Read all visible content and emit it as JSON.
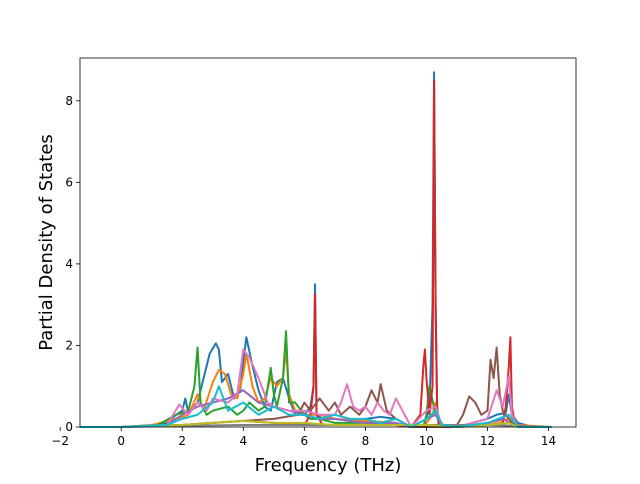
{
  "chart_data": {
    "type": "line",
    "title": "",
    "xlabel": "Frequency (THz)",
    "ylabel": "Partial Density of States",
    "xlim": [
      -1.35,
      14.9
    ],
    "ylim": [
      0,
      9.05
    ],
    "xticks": [
      -2,
      0,
      2,
      4,
      6,
      8,
      10,
      12,
      14
    ],
    "yticks": [
      0,
      2,
      4,
      6,
      8
    ],
    "grid": false,
    "legend": "none",
    "colors": [
      "#1f77b4",
      "#ff7f0e",
      "#2ca02c",
      "#d62728",
      "#9467bd",
      "#8c564b",
      "#e377c2",
      "#7f7f7f",
      "#bcbd22",
      "#17becf"
    ],
    "series": [
      {
        "x": [
          -1.35,
          0.0,
          0.8,
          1.5,
          1.8,
          2.0,
          2.1,
          2.2,
          2.5,
          2.7,
          2.9,
          3.1,
          3.2,
          3.3,
          3.5,
          3.7,
          3.9,
          4.0,
          4.1,
          4.3,
          4.5,
          4.7,
          4.9,
          5.1,
          5.3,
          5.5,
          5.7,
          6.0,
          6.2,
          6.3,
          6.35,
          6.4,
          6.6,
          7.0,
          7.5,
          8.0,
          8.5,
          9.0,
          9.5,
          9.9,
          10.1,
          10.2,
          10.25,
          10.3,
          10.35,
          10.4,
          10.6,
          11.0,
          11.5,
          12.0,
          12.3,
          12.6,
          12.7,
          12.8,
          13.0,
          13.5,
          14.1
        ],
        "y": [
          0,
          0,
          0.02,
          0.1,
          0.3,
          0.4,
          0.7,
          0.35,
          0.6,
          1.2,
          1.8,
          2.05,
          1.9,
          1.1,
          1.3,
          0.7,
          0.9,
          1.6,
          2.2,
          1.5,
          0.9,
          0.5,
          0.4,
          1.1,
          1.2,
          0.7,
          0.3,
          0.3,
          0.5,
          1.0,
          3.5,
          0.3,
          0.2,
          0.2,
          0.15,
          0.2,
          0.25,
          0.2,
          0,
          0,
          0.5,
          3.0,
          8.7,
          3.0,
          0.5,
          0.05,
          0,
          0,
          0.1,
          0.2,
          0.3,
          0.35,
          0.8,
          0.3,
          0.1,
          0,
          0
        ]
      },
      {
        "x": [
          -1.35,
          0.0,
          1.0,
          1.8,
          2.2,
          2.5,
          2.7,
          3.0,
          3.2,
          3.4,
          3.6,
          3.8,
          4.0,
          4.1,
          4.3,
          4.5,
          4.7,
          4.9,
          5.1,
          5.3,
          5.4,
          5.5,
          5.7,
          6.0,
          6.5,
          7.0,
          8.0,
          9.0,
          9.5,
          9.9,
          10.2,
          10.3,
          10.4,
          10.6,
          11.0,
          12.0,
          12.7,
          13.0,
          14.1
        ],
        "y": [
          0,
          0,
          0.05,
          0.2,
          0.3,
          0.8,
          0.4,
          1.1,
          1.4,
          1.3,
          0.8,
          0.7,
          1.3,
          1.8,
          1.0,
          0.6,
          0.7,
          1.2,
          1.0,
          1.2,
          1.9,
          0.8,
          0.4,
          0.3,
          0.3,
          0.2,
          0.15,
          0.1,
          0,
          0,
          0.3,
          0.6,
          0.2,
          0,
          0,
          0.1,
          0.2,
          0.05,
          0
        ]
      },
      {
        "x": [
          -1.35,
          0.0,
          1.2,
          1.8,
          2.2,
          2.4,
          2.5,
          2.6,
          2.8,
          3.0,
          3.5,
          3.8,
          4.0,
          4.2,
          4.5,
          4.7,
          4.9,
          5.0,
          5.1,
          5.3,
          5.4,
          5.5,
          5.7,
          6.0,
          6.2,
          6.5,
          7.0,
          8.0,
          9.0,
          9.5,
          9.9,
          10.0,
          10.1,
          10.3,
          10.5,
          11.0,
          12.0,
          12.7,
          13.0,
          14.1
        ],
        "y": [
          0,
          0,
          0.05,
          0.3,
          0.4,
          1.0,
          1.95,
          0.6,
          0.3,
          0.4,
          0.5,
          0.3,
          0.4,
          0.6,
          0.4,
          0.5,
          1.45,
          0.8,
          0.5,
          1.2,
          2.35,
          0.6,
          0.6,
          0.3,
          0.2,
          0.2,
          0.1,
          0.1,
          0.05,
          0,
          0,
          0.3,
          1.0,
          0.3,
          0.05,
          0,
          0.05,
          0.1,
          0,
          0
        ]
      },
      {
        "x": [
          -1.35,
          0.0,
          2.0,
          3.0,
          4.0,
          5.0,
          6.0,
          6.2,
          6.3,
          6.35,
          6.4,
          6.6,
          7.0,
          8.0,
          9.0,
          9.5,
          9.8,
          9.9,
          9.95,
          10.0,
          10.1,
          10.2,
          10.25,
          10.3,
          10.35,
          10.4,
          10.6,
          11.0,
          12.0,
          12.5,
          12.6,
          12.7,
          12.75,
          12.8,
          12.9,
          13.0,
          14.1
        ],
        "y": [
          0,
          0,
          0.05,
          0.1,
          0.15,
          0.1,
          0.05,
          0.3,
          1.0,
          3.25,
          0.3,
          0.05,
          0.05,
          0.05,
          0.05,
          0,
          0.3,
          1.5,
          1.9,
          1.2,
          0.3,
          1.0,
          8.5,
          3.0,
          0.5,
          0.05,
          0,
          0,
          0.05,
          0.1,
          0.5,
          1.5,
          2.2,
          0.5,
          0.05,
          0,
          0
        ]
      },
      {
        "x": [
          -1.35,
          0.0,
          1.5,
          2.0,
          2.5,
          3.0,
          3.5,
          4.0,
          4.5,
          5.0,
          5.5,
          6.0,
          6.5,
          7.0,
          7.5,
          8.0,
          9.0,
          9.5,
          10.0,
          10.3,
          10.5,
          11.0,
          12.0,
          12.5,
          13.0,
          14.1
        ],
        "y": [
          0,
          0,
          0.05,
          0.3,
          0.5,
          0.6,
          0.7,
          0.9,
          0.6,
          0.5,
          0.4,
          0.3,
          0.2,
          0.2,
          0.15,
          0.1,
          0.1,
          0,
          0.2,
          0.3,
          0.05,
          0,
          0.1,
          0.2,
          0,
          0
        ]
      },
      {
        "x": [
          -1.35,
          0.0,
          2.0,
          3.0,
          4.0,
          5.0,
          5.8,
          6.0,
          6.2,
          6.5,
          6.8,
          7.0,
          7.2,
          7.5,
          7.8,
          8.0,
          8.2,
          8.4,
          8.5,
          8.7,
          9.0,
          9.5,
          10.0,
          10.5,
          11.0,
          11.2,
          11.4,
          11.6,
          11.8,
          12.0,
          12.1,
          12.2,
          12.3,
          12.4,
          12.5,
          12.8,
          13.0,
          14.1
        ],
        "y": [
          0,
          0,
          0.05,
          0.1,
          0.15,
          0.2,
          0.3,
          0.6,
          0.4,
          0.7,
          0.4,
          0.6,
          0.3,
          0.5,
          0.3,
          0.5,
          0.9,
          0.6,
          1.05,
          0.4,
          0.2,
          0,
          0,
          0,
          0.05,
          0.3,
          0.75,
          0.6,
          0.3,
          0.4,
          1.65,
          1.2,
          1.95,
          0.8,
          0.4,
          0.1,
          0,
          0
        ]
      },
      {
        "x": [
          -1.35,
          0.0,
          1.5,
          1.9,
          2.2,
          2.5,
          2.8,
          3.0,
          3.5,
          3.8,
          4.0,
          4.2,
          4.5,
          4.8,
          5.0,
          5.5,
          6.0,
          6.5,
          7.0,
          7.2,
          7.4,
          7.6,
          7.8,
          8.0,
          8.2,
          8.4,
          8.6,
          8.8,
          9.0,
          9.5,
          10.0,
          10.3,
          10.5,
          11.0,
          11.5,
          12.0,
          12.3,
          12.5,
          12.7,
          12.8,
          13.0,
          14.1
        ],
        "y": [
          0,
          0,
          0.05,
          0.55,
          0.3,
          0.6,
          0.4,
          0.7,
          0.6,
          0.8,
          1.9,
          1.7,
          1.2,
          0.6,
          0.5,
          0.4,
          0.4,
          0.3,
          0.3,
          0.6,
          1.05,
          0.5,
          0.4,
          0.5,
          0.3,
          0.6,
          0.4,
          0.3,
          0.7,
          0,
          0.4,
          0.5,
          0.05,
          0,
          0.1,
          0.2,
          0.9,
          0.5,
          1.25,
          0.3,
          0,
          0
        ]
      },
      {
        "x": [
          -1.35,
          0.0,
          2.0,
          4.0,
          6.0,
          8.0,
          10.0,
          12.0,
          14.1
        ],
        "y": [
          0,
          0,
          0.03,
          0.05,
          0.05,
          0.05,
          0.05,
          0.05,
          0
        ]
      },
      {
        "x": [
          -1.35,
          0.0,
          2.0,
          3.0,
          4.0,
          5.0,
          6.0,
          7.0,
          8.0,
          9.0,
          10.0,
          11.0,
          12.0,
          12.7,
          13.0,
          14.1
        ],
        "y": [
          0,
          0,
          0.05,
          0.1,
          0.15,
          0.1,
          0.1,
          0.05,
          0.05,
          0.05,
          0.05,
          0,
          0.05,
          0.1,
          0,
          0
        ]
      },
      {
        "x": [
          -1.35,
          0.0,
          1.5,
          2.0,
          2.5,
          3.0,
          3.2,
          3.5,
          4.0,
          4.5,
          5.0,
          5.5,
          6.0,
          6.5,
          7.0,
          7.5,
          8.0,
          8.5,
          9.0,
          9.5,
          10.0,
          10.3,
          10.5,
          11.0,
          12.0,
          12.7,
          13.0,
          14.1
        ],
        "y": [
          0,
          0,
          0.05,
          0.2,
          0.3,
          0.6,
          1.0,
          0.4,
          0.6,
          0.3,
          0.5,
          0.3,
          0.3,
          0.2,
          0.3,
          0.2,
          0.2,
          0.1,
          0.2,
          0,
          0.2,
          0.4,
          0.05,
          0,
          0.1,
          0.3,
          0,
          0
        ]
      }
    ]
  }
}
